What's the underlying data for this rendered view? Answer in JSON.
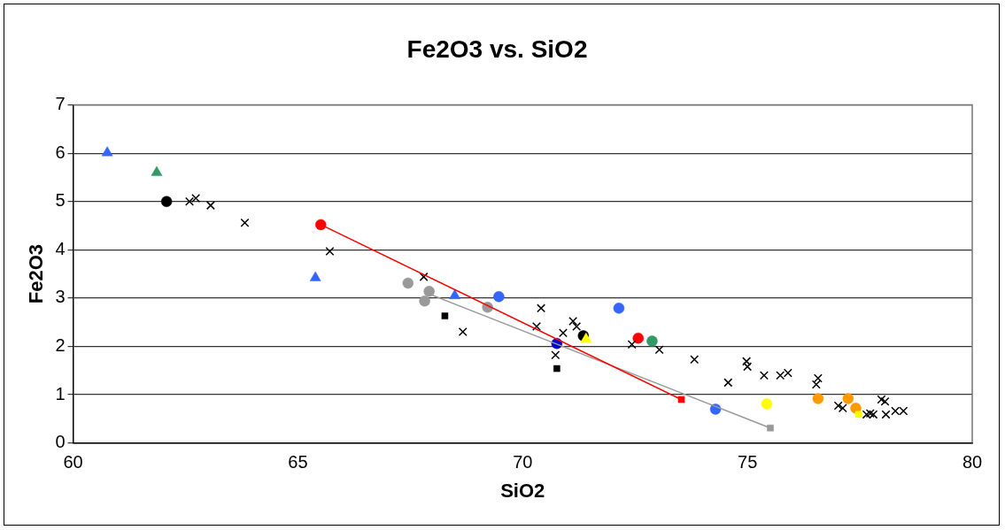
{
  "chart_data": {
    "type": "scatter",
    "title": "Fe2O3 vs. SiO2",
    "xlabel": "SiO2",
    "ylabel": "Fe2O3",
    "xlim": [
      60,
      80
    ],
    "xticks": [
      60,
      65,
      70,
      75,
      80
    ],
    "ylim": [
      0,
      7
    ],
    "yticks": [
      0,
      1,
      2,
      3,
      4,
      5,
      6,
      7
    ],
    "grid": "y",
    "legend": false,
    "series": [
      {
        "type": "line",
        "marker": "none",
        "color": "#ff0000",
        "x": [
          65.51,
          73.53
        ],
        "values": [
          4.52,
          0.9
        ]
      },
      {
        "type": "line",
        "marker": "none",
        "color": "#999999",
        "x": [
          67.96,
          75.51
        ],
        "values": [
          3.07,
          0.31
        ]
      },
      {
        "marker": "triangle",
        "color": "#3366ff",
        "x": [
          60.76,
          65.39,
          68.49
        ],
        "values": [
          6.01,
          3.42,
          3.05
        ]
      },
      {
        "marker": "triangle",
        "color": "#339966",
        "x": [
          61.86
        ],
        "values": [
          5.6
        ]
      },
      {
        "marker": "circle",
        "color": "#000000",
        "x": [
          62.08
        ],
        "values": [
          5.0
        ]
      },
      {
        "marker": "cross",
        "color": "#000000",
        "x": [
          62.59,
          62.73,
          63.06,
          63.82,
          65.71,
          67.8,
          70.9
        ],
        "values": [
          5.0,
          5.07,
          4.92,
          4.56,
          3.97,
          3.44,
          2.28
        ]
      },
      {
        "marker": "cross",
        "color": "#000000",
        "x": [
          68.67,
          70.41,
          70.31,
          71.12,
          71.2,
          70.73,
          72.43,
          73.04,
          73.82,
          74.57,
          74.98,
          75.0,
          75.37,
          75.73,
          75.9,
          76.57,
          76.53,
          77.02,
          77.12,
          77.65,
          77.73,
          77.8,
          77.98,
          78.06,
          78.08,
          78.29,
          78.47
        ],
        "values": [
          2.3,
          2.79,
          2.41,
          2.52,
          2.41,
          1.82,
          2.04,
          1.93,
          1.73,
          1.25,
          1.69,
          1.58,
          1.4,
          1.4,
          1.45,
          1.34,
          1.21,
          0.77,
          0.72,
          0.59,
          0.61,
          0.59,
          0.9,
          0.86,
          0.59,
          0.66,
          0.66
        ]
      },
      {
        "marker": "circle",
        "color": "#999999",
        "x": [
          67.45,
          67.82,
          67.92,
          69.22
        ],
        "values": [
          3.31,
          2.94,
          3.14,
          2.81
        ]
      },
      {
        "marker": "square",
        "color": "#999999",
        "x": [
          75.51
        ],
        "values": [
          0.31
        ]
      },
      {
        "marker": "circle",
        "color": "#ff0000",
        "x": [
          65.51,
          72.57
        ],
        "values": [
          4.52,
          2.17
        ]
      },
      {
        "marker": "square",
        "color": "#ff0000",
        "x": [
          73.53
        ],
        "values": [
          0.9
        ]
      },
      {
        "marker": "circle",
        "color": "#3366ff",
        "x": [
          69.47,
          74.29
        ],
        "values": [
          3.03,
          0.7
        ]
      },
      {
        "marker": "circle",
        "color": "#3366ff",
        "x": [
          72.14
        ],
        "values": [
          2.79
        ]
      },
      {
        "marker": "circle",
        "color": "#0000cc",
        "x": [
          70.76
        ],
        "values": [
          2.06
        ]
      },
      {
        "marker": "circle",
        "color": "#339966",
        "x": [
          72.88
        ],
        "values": [
          2.11
        ]
      },
      {
        "marker": "triangle",
        "color": "#ffff00",
        "x": [
          71.41
        ],
        "values": [
          2.15
        ]
      },
      {
        "marker": "circle",
        "color": "#000000",
        "x": [
          71.35
        ],
        "values": [
          2.22
        ]
      },
      {
        "marker": "circle",
        "color": "#ffff00",
        "x": [
          75.43
        ],
        "values": [
          0.81
        ]
      },
      {
        "marker": "square",
        "color": "#ffff00",
        "x": [
          77.47
        ],
        "values": [
          0.59
        ]
      },
      {
        "marker": "circle",
        "color": "#ff9900",
        "x": [
          77.24,
          77.41
        ],
        "values": [
          0.92,
          0.72
        ]
      },
      {
        "marker": "circle",
        "color": "#ff9900",
        "x": [
          76.57
        ],
        "values": [
          0.92
        ]
      },
      {
        "marker": "square",
        "color": "#000000",
        "x": [
          68.27,
          70.76
        ],
        "values": [
          2.63,
          1.54
        ]
      }
    ]
  }
}
